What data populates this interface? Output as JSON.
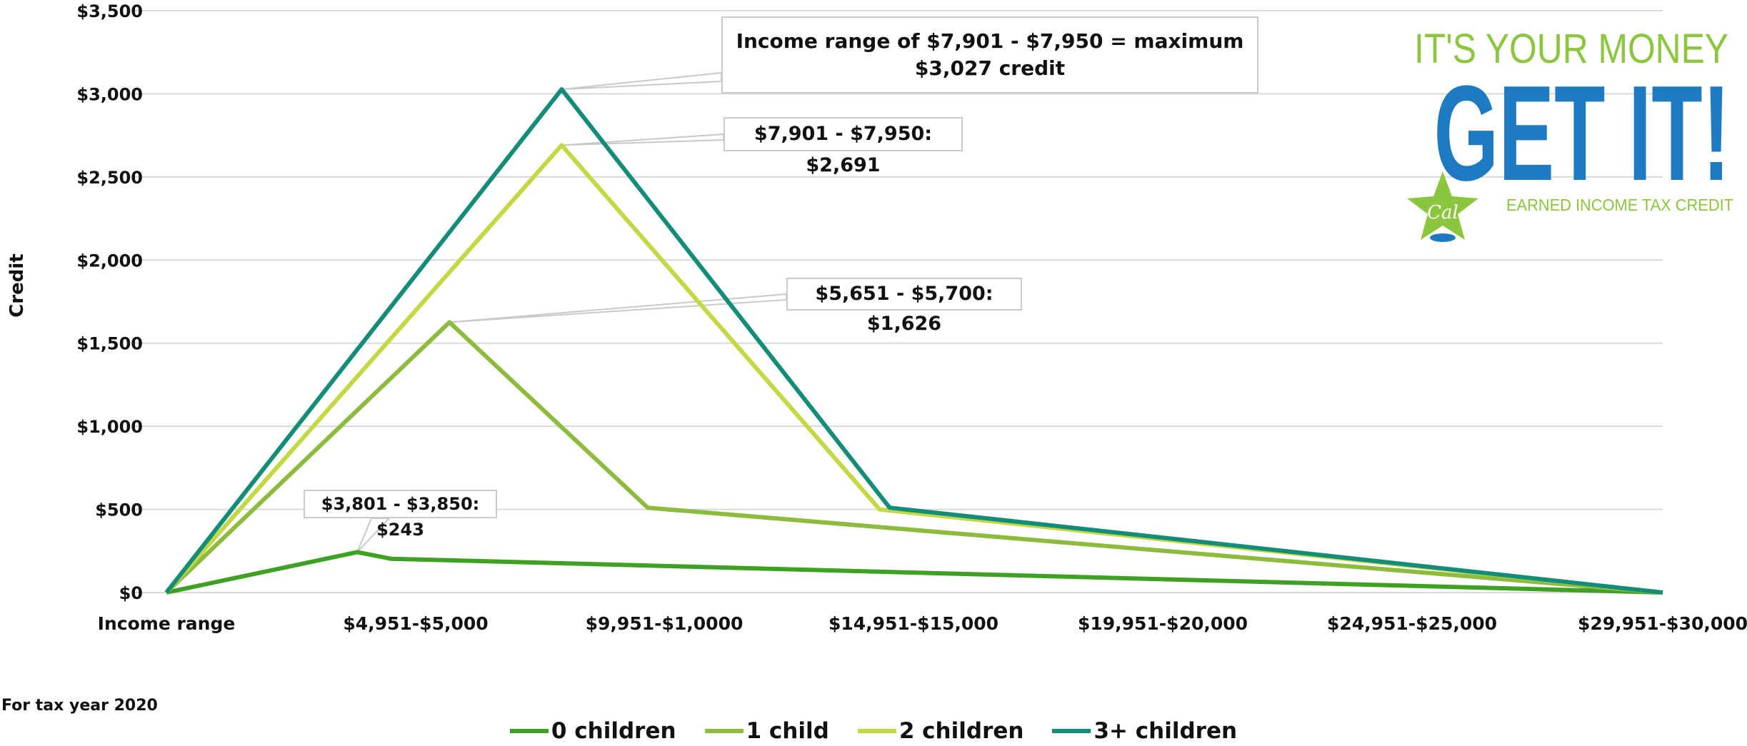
{
  "chart_data": {
    "type": "line",
    "ylabel": "Credit",
    "y_ticks": [
      "$0",
      "$500",
      "$1,000",
      "$1,500",
      "$2,000",
      "$2,500",
      "$3,000",
      "$3,500"
    ],
    "ylim": [
      0,
      3500
    ],
    "x_ticks": [
      "Income range",
      "$4,951-$5,000",
      "$9,951-$1,0000",
      "$14,951-$15,000",
      "$19,951-$20,000",
      "$24,951-$25,000",
      "$29,951-$30,000"
    ],
    "xlim": [
      0,
      30000
    ],
    "grid": "horizontal",
    "legend_position": "bottom",
    "series": [
      {
        "name": "0 children",
        "color": "#3fa124",
        "points": [
          [
            0,
            0
          ],
          [
            3825,
            243
          ],
          [
            4500,
            203
          ],
          [
            30000,
            0
          ]
        ]
      },
      {
        "name": "1 child",
        "color": "#8cbb3e",
        "points": [
          [
            0,
            0
          ],
          [
            5675,
            1626
          ],
          [
            9650,
            510
          ],
          [
            30000,
            0
          ]
        ]
      },
      {
        "name": "2 children",
        "color": "#c5d843",
        "points": [
          [
            0,
            0
          ],
          [
            7925,
            2691
          ],
          [
            14300,
            500
          ],
          [
            30000,
            0
          ]
        ]
      },
      {
        "name": "3+ children",
        "color": "#138c78",
        "points": [
          [
            0,
            0
          ],
          [
            7925,
            3027
          ],
          [
            14500,
            510
          ],
          [
            30000,
            0
          ]
        ]
      }
    ],
    "annotations": [
      {
        "id": "max",
        "text": "Income range of $7,901 - $7,950 = maximum $3,027 credit",
        "x": 7925,
        "y": 3027
      },
      {
        "id": "two",
        "text": "$7,901 - $7,950: $2,691",
        "x": 7925,
        "y": 2691
      },
      {
        "id": "one",
        "text": "$5,651 - $5,700: $1,626",
        "x": 5675,
        "y": 1626
      },
      {
        "id": "zero",
        "text": "$3,801 - $3,850: $243",
        "x": 3825,
        "y": 243
      }
    ]
  },
  "footnote": "For tax year 2020",
  "logo": {
    "line1": "IT'S YOUR MONEY",
    "line2": "GET IT!",
    "line3": "EARNED INCOME TAX CREDIT",
    "badge": "Cal",
    "green": "#8cc63f",
    "blue": "#1e7bc1"
  }
}
